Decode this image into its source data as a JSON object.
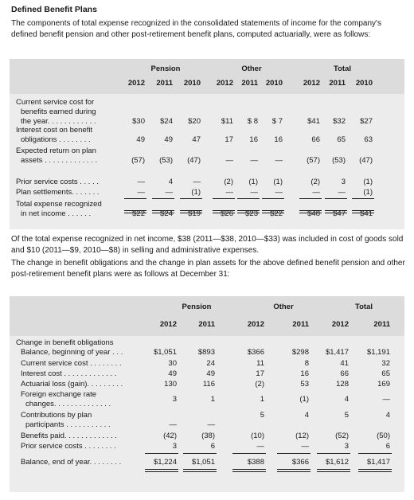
{
  "heading": "Defined Benefit Plans",
  "intro": "The components of total expense recognized in the consolidated statements of income for the company's defined benefit pension and other post-retirement benefit plans, computed actuarially, were as follows:",
  "expense_table": {
    "groups": [
      "Pension",
      "Other",
      "Total"
    ],
    "years": [
      "2012",
      "2011",
      "2010",
      "2012",
      "2011",
      "2010",
      "2012",
      "2011",
      "2010"
    ],
    "rows": [
      {
        "label": [
          "Current service cost for",
          "benefits earned during",
          "the year. . . . . . . . . . . ."
        ],
        "values": [
          "$30",
          "$24",
          "$20",
          "$11",
          "$ 8",
          "$ 7",
          "$41",
          "$32",
          "$27"
        ]
      },
      {
        "label": [
          "Interest cost on benefit",
          "obligations . . . . . . . ."
        ],
        "values": [
          "49",
          "49",
          "47",
          "17",
          "16",
          "16",
          "66",
          "65",
          "63"
        ]
      },
      {
        "label": [
          "Expected return on plan",
          "assets . . . . . . . . . . . . ."
        ],
        "values": [
          "(57)",
          "(53)",
          "(47)",
          "—",
          "—",
          "—",
          "(57)",
          "(53)",
          "(47)"
        ]
      },
      {
        "label": [
          "Prior service costs . . . . ."
        ],
        "values": [
          "—",
          "4",
          "—",
          "(2)",
          "(1)",
          "(1)",
          "(2)",
          "3",
          "(1)"
        ]
      },
      {
        "label": [
          "Plan settlements. . . . . . ."
        ],
        "values": [
          "—",
          "—",
          "(1)",
          "—",
          "—",
          "—",
          "—",
          "—",
          "(1)"
        ]
      },
      {
        "label": [
          "Total expense recognized",
          "in net income . . . . . ."
        ],
        "values": [
          "$22",
          "$24",
          "$19",
          "$26",
          "$23",
          "$22",
          "$48",
          "$47",
          "$41"
        ]
      }
    ]
  },
  "middle_text_1": "Of the total expense recognized in net income, $38 (2011—$38, 2010—$33) was included in cost of goods sold and $10 (2011—$9, 2010—$8) in selling and administrative expenses.",
  "middle_text_2": "The change in benefit obligations and the change in plan assets for the above defined benefit pension and other post-retirement benefit plans were as follows at December 31:",
  "change_table": {
    "groups": [
      "Pension",
      "Other",
      "Total"
    ],
    "years": [
      "2012",
      "2011",
      "2012",
      "2011",
      "2012",
      "2011"
    ],
    "section_label": "Change in benefit obligations",
    "rows": [
      {
        "label": [
          "Balance, beginning of year . . ."
        ],
        "values": [
          "$1,051",
          "$893",
          "$366",
          "$298",
          "$1,417",
          "$1,191"
        ]
      },
      {
        "label": [
          "Current service cost . . . . . . . ."
        ],
        "values": [
          "30",
          "24",
          "11",
          "8",
          "41",
          "32"
        ]
      },
      {
        "label": [
          "Interest cost . . . . . . . . . . . . ."
        ],
        "values": [
          "49",
          "49",
          "17",
          "16",
          "66",
          "65"
        ]
      },
      {
        "label": [
          "Actuarial loss (gain). . . . . . . . ."
        ],
        "values": [
          "130",
          "116",
          "(2)",
          "53",
          "128",
          "169"
        ]
      },
      {
        "label": [
          "Foreign exchange rate",
          "changes. . . . . . . . . . . . . ."
        ],
        "values": [
          "3",
          "1",
          "1",
          "(1)",
          "4",
          "—"
        ]
      },
      {
        "label": [
          "Contributions by plan",
          "participants . . . . . . . . . . ."
        ],
        "values": [
          "—",
          "—",
          "5",
          "4",
          "5",
          "4"
        ]
      },
      {
        "label": [
          "Benefits paid. . . . . . . . . . . . ."
        ],
        "values": [
          "(42)",
          "(38)",
          "(10)",
          "(12)",
          "(52)",
          "(50)"
        ]
      },
      {
        "label": [
          "Prior service costs . . . . . . . ."
        ],
        "values": [
          "3",
          "6",
          "—",
          "—",
          "3",
          "6"
        ]
      },
      {
        "label": [
          "Balance, end of year. . . . . . . ."
        ],
        "values": [
          "$1,224",
          "$1,051",
          "$388",
          "$366",
          "$1,612",
          "$1,417"
        ]
      }
    ]
  }
}
